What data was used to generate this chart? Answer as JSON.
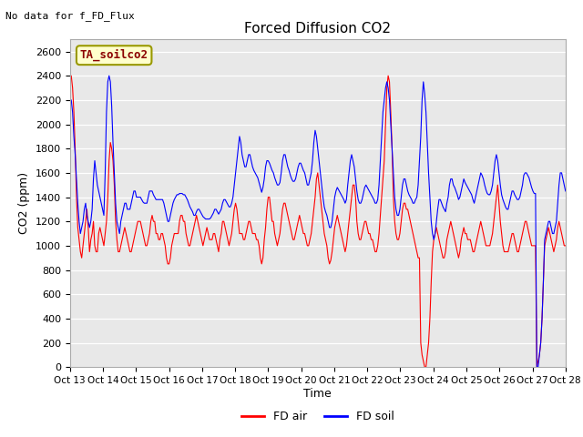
{
  "title": "Forced Diffusion CO2",
  "top_left_text": "No data for f_FD_Flux",
  "ylabel": "CO2 (ppm)",
  "xlabel": "Time",
  "ylim": [
    0,
    2700
  ],
  "xlim": [
    0,
    360
  ],
  "bg_color": "#e8e8e8",
  "fig_bg": "#ffffff",
  "legend_box_label": "TA_soilco2",
  "legend_box_bg": "#ffffcc",
  "legend_box_edge": "#8b8b00",
  "line_red_label": "FD air",
  "line_blue_label": "FD soil",
  "xtick_labels": [
    "Oct 13",
    "Oct 14",
    "Oct 15",
    "Oct 16",
    "Oct 17",
    "Oct 18",
    "Oct 19",
    "Oct 20",
    "Oct 21",
    "Oct 22",
    "Oct 23",
    "Oct 24",
    "Oct 25",
    "Oct 26",
    "Oct 27",
    "Oct 28"
  ],
  "xtick_positions": [
    0,
    24,
    48,
    72,
    96,
    120,
    144,
    168,
    192,
    216,
    240,
    264,
    288,
    312,
    336,
    360
  ],
  "ytick_positions": [
    0,
    200,
    400,
    600,
    800,
    1000,
    1200,
    1400,
    1600,
    1800,
    2000,
    2200,
    2400,
    2600
  ],
  "red_data": [
    2350,
    2400,
    2300,
    2100,
    1800,
    1400,
    1150,
    1050,
    950,
    900,
    1000,
    1100,
    1200,
    1300,
    1150,
    950,
    1050,
    1100,
    1200,
    1000,
    950,
    950,
    1100,
    1150,
    1100,
    1050,
    1000,
    1100,
    1200,
    1400,
    1700,
    1850,
    1800,
    1700,
    1500,
    1200,
    1050,
    950,
    950,
    1000,
    1050,
    1100,
    1150,
    1100,
    1050,
    1000,
    950,
    950,
    1000,
    1050,
    1100,
    1150,
    1200,
    1200,
    1200,
    1150,
    1100,
    1050,
    1000,
    1000,
    1050,
    1100,
    1200,
    1250,
    1200,
    1200,
    1100,
    1100,
    1050,
    1050,
    1100,
    1100,
    1050,
    1000,
    900,
    850,
    850,
    900,
    1000,
    1050,
    1100,
    1100,
    1100,
    1100,
    1200,
    1250,
    1250,
    1200,
    1200,
    1100,
    1050,
    1000,
    1000,
    1050,
    1100,
    1150,
    1200,
    1250,
    1200,
    1150,
    1100,
    1050,
    1000,
    1050,
    1100,
    1150,
    1100,
    1050,
    1050,
    1050,
    1100,
    1100,
    1050,
    1000,
    950,
    1050,
    1100,
    1200,
    1200,
    1150,
    1100,
    1050,
    1000,
    1050,
    1100,
    1200,
    1300,
    1350,
    1300,
    1200,
    1100,
    1100,
    1100,
    1050,
    1050,
    1100,
    1150,
    1200,
    1200,
    1150,
    1100,
    1100,
    1100,
    1050,
    1050,
    1000,
    900,
    850,
    900,
    1050,
    1150,
    1300,
    1400,
    1400,
    1300,
    1200,
    1200,
    1100,
    1050,
    1000,
    1050,
    1100,
    1200,
    1300,
    1350,
    1350,
    1300,
    1250,
    1200,
    1150,
    1100,
    1050,
    1050,
    1100,
    1150,
    1200,
    1250,
    1200,
    1150,
    1100,
    1100,
    1050,
    1000,
    1000,
    1050,
    1100,
    1200,
    1300,
    1400,
    1550,
    1600,
    1500,
    1400,
    1300,
    1200,
    1100,
    1050,
    1000,
    900,
    850,
    880,
    950,
    1050,
    1150,
    1200,
    1250,
    1200,
    1150,
    1100,
    1050,
    1000,
    950,
    1000,
    1100,
    1200,
    1300,
    1400,
    1500,
    1500,
    1400,
    1200,
    1100,
    1050,
    1050,
    1100,
    1150,
    1200,
    1200,
    1150,
    1100,
    1100,
    1050,
    1050,
    1000,
    950,
    950,
    1000,
    1100,
    1250,
    1400,
    1550,
    1700,
    2000,
    2300,
    2400,
    2350,
    2100,
    1800,
    1400,
    1200,
    1100,
    1050,
    1050,
    1100,
    1200,
    1300,
    1350,
    1350,
    1300,
    1300,
    1250,
    1200,
    1150,
    1100,
    1050,
    1000,
    950,
    900,
    900,
    200,
    100,
    50,
    0,
    0,
    100,
    200,
    400,
    700,
    950,
    1050,
    1100,
    1150,
    1100,
    1050,
    1000,
    950,
    900,
    900,
    950,
    1050,
    1100,
    1150,
    1200,
    1150,
    1100,
    1050,
    1000,
    950,
    900,
    950,
    1050,
    1100,
    1150,
    1100,
    1100,
    1050,
    1050,
    1050,
    1000,
    950,
    950,
    1000,
    1050,
    1100,
    1150,
    1200,
    1150,
    1100,
    1050,
    1000,
    1000,
    1000,
    1000,
    1050,
    1100,
    1200,
    1300,
    1400,
    1500,
    1350,
    1200,
    1100,
    1000,
    950,
    950,
    950,
    950,
    1000,
    1050,
    1100,
    1100,
    1050,
    1000,
    950,
    950,
    1000,
    1050,
    1100,
    1150,
    1200,
    1200,
    1150,
    1100,
    1050,
    1000,
    1000,
    1000,
    1000,
    0,
    50,
    100,
    200,
    400,
    700,
    1000,
    1050,
    1100,
    1150,
    1100,
    1050,
    1000,
    950,
    1000,
    1050,
    1150,
    1200,
    1150,
    1100,
    1050,
    1000,
    1000
  ],
  "blue_data": [
    2200,
    2200,
    2100,
    1900,
    1750,
    1550,
    1350,
    1200,
    1100,
    1150,
    1200,
    1300,
    1350,
    1250,
    1200,
    1150,
    1200,
    1300,
    1550,
    1700,
    1600,
    1500,
    1450,
    1400,
    1350,
    1300,
    1250,
    1600,
    2100,
    2350,
    2400,
    2350,
    2150,
    1850,
    1600,
    1350,
    1200,
    1150,
    1100,
    1200,
    1250,
    1300,
    1350,
    1350,
    1300,
    1300,
    1300,
    1350,
    1400,
    1450,
    1450,
    1400,
    1400,
    1400,
    1400,
    1380,
    1360,
    1350,
    1350,
    1350,
    1400,
    1450,
    1450,
    1450,
    1420,
    1400,
    1380,
    1380,
    1380,
    1380,
    1380,
    1380,
    1350,
    1300,
    1250,
    1200,
    1200,
    1250,
    1300,
    1350,
    1380,
    1400,
    1420,
    1420,
    1430,
    1430,
    1430,
    1420,
    1420,
    1400,
    1380,
    1350,
    1320,
    1300,
    1280,
    1250,
    1250,
    1280,
    1300,
    1300,
    1280,
    1260,
    1240,
    1230,
    1220,
    1220,
    1220,
    1220,
    1230,
    1250,
    1270,
    1300,
    1300,
    1280,
    1260,
    1280,
    1300,
    1350,
    1380,
    1380,
    1360,
    1340,
    1320,
    1320,
    1350,
    1400,
    1500,
    1600,
    1700,
    1800,
    1900,
    1850,
    1750,
    1700,
    1650,
    1650,
    1700,
    1750,
    1750,
    1700,
    1650,
    1620,
    1600,
    1580,
    1560,
    1520,
    1480,
    1440,
    1480,
    1550,
    1650,
    1700,
    1700,
    1680,
    1650,
    1620,
    1600,
    1560,
    1530,
    1500,
    1500,
    1520,
    1600,
    1700,
    1750,
    1750,
    1700,
    1650,
    1620,
    1580,
    1550,
    1530,
    1530,
    1550,
    1600,
    1650,
    1680,
    1680,
    1650,
    1620,
    1600,
    1550,
    1500,
    1500,
    1550,
    1600,
    1700,
    1850,
    1950,
    1900,
    1800,
    1700,
    1600,
    1500,
    1400,
    1320,
    1280,
    1250,
    1200,
    1150,
    1150,
    1200,
    1300,
    1400,
    1450,
    1480,
    1460,
    1440,
    1420,
    1400,
    1380,
    1350,
    1380,
    1500,
    1600,
    1700,
    1750,
    1700,
    1650,
    1550,
    1450,
    1380,
    1350,
    1350,
    1380,
    1430,
    1480,
    1500,
    1480,
    1460,
    1440,
    1420,
    1400,
    1380,
    1350,
    1350,
    1380,
    1500,
    1700,
    1900,
    2100,
    2200,
    2300,
    2350,
    2300,
    2200,
    2000,
    1800,
    1600,
    1400,
    1300,
    1250,
    1250,
    1300,
    1400,
    1500,
    1550,
    1550,
    1500,
    1450,
    1420,
    1400,
    1380,
    1350,
    1350,
    1380,
    1400,
    1500,
    1700,
    1900,
    2200,
    2350,
    2250,
    2100,
    1850,
    1600,
    1400,
    1200,
    1100,
    1050,
    1100,
    1200,
    1300,
    1380,
    1380,
    1350,
    1320,
    1300,
    1280,
    1350,
    1400,
    1500,
    1550,
    1550,
    1500,
    1480,
    1450,
    1420,
    1380,
    1400,
    1450,
    1500,
    1550,
    1520,
    1500,
    1480,
    1460,
    1440,
    1420,
    1380,
    1350,
    1400,
    1450,
    1500,
    1550,
    1600,
    1580,
    1550,
    1500,
    1460,
    1430,
    1420,
    1420,
    1450,
    1500,
    1600,
    1700,
    1750,
    1700,
    1600,
    1500,
    1420,
    1380,
    1350,
    1320,
    1300,
    1300,
    1350,
    1400,
    1450,
    1450,
    1420,
    1400,
    1380,
    1380,
    1400,
    1450,
    1500,
    1580,
    1600,
    1600,
    1580,
    1560,
    1520,
    1480,
    1450,
    1430,
    1430,
    0,
    0,
    100,
    200,
    400,
    700,
    1050,
    1100,
    1150,
    1200,
    1200,
    1150,
    1100,
    1100,
    1150,
    1200,
    1350,
    1500,
    1600,
    1600,
    1550,
    1500,
    1450
  ]
}
